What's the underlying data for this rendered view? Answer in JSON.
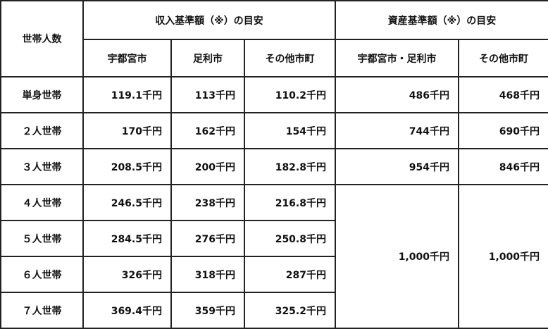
{
  "table": {
    "corner": "世帯人数",
    "group_income": "収入基準額（※）の目安",
    "group_assets": "資産基準額（※）の目安",
    "sub_headers": [
      "宇都宮市",
      "足利市",
      "その他市町",
      "宇都宮市・足利市",
      "その他市町"
    ],
    "rows": [
      {
        "label": "単身世帯",
        "income": [
          "119.1千円",
          "113千円",
          "110.2千円"
        ],
        "assets": [
          "486千円",
          "468千円"
        ]
      },
      {
        "label": "２人世帯",
        "income": [
          "170千円",
          "162千円",
          "154千円"
        ],
        "assets": [
          "744千円",
          "690千円"
        ]
      },
      {
        "label": "３人世帯",
        "income": [
          "208.5千円",
          "200千円",
          "182.8千円"
        ],
        "assets": [
          "954千円",
          "846千円"
        ]
      },
      {
        "label": "４人世帯",
        "income": [
          "246.5千円",
          "238千円",
          "216.8千円"
        ]
      },
      {
        "label": "５人世帯",
        "income": [
          "284.5千円",
          "276千円",
          "250.8千円"
        ]
      },
      {
        "label": "６人世帯",
        "income": [
          "326千円",
          "318千円",
          "287千円"
        ]
      },
      {
        "label": "７人世帯",
        "income": [
          "369.4千円",
          "359千円",
          "325.2千円"
        ]
      }
    ],
    "merged_assets": [
      "1,000千円",
      "1,000千円"
    ]
  }
}
